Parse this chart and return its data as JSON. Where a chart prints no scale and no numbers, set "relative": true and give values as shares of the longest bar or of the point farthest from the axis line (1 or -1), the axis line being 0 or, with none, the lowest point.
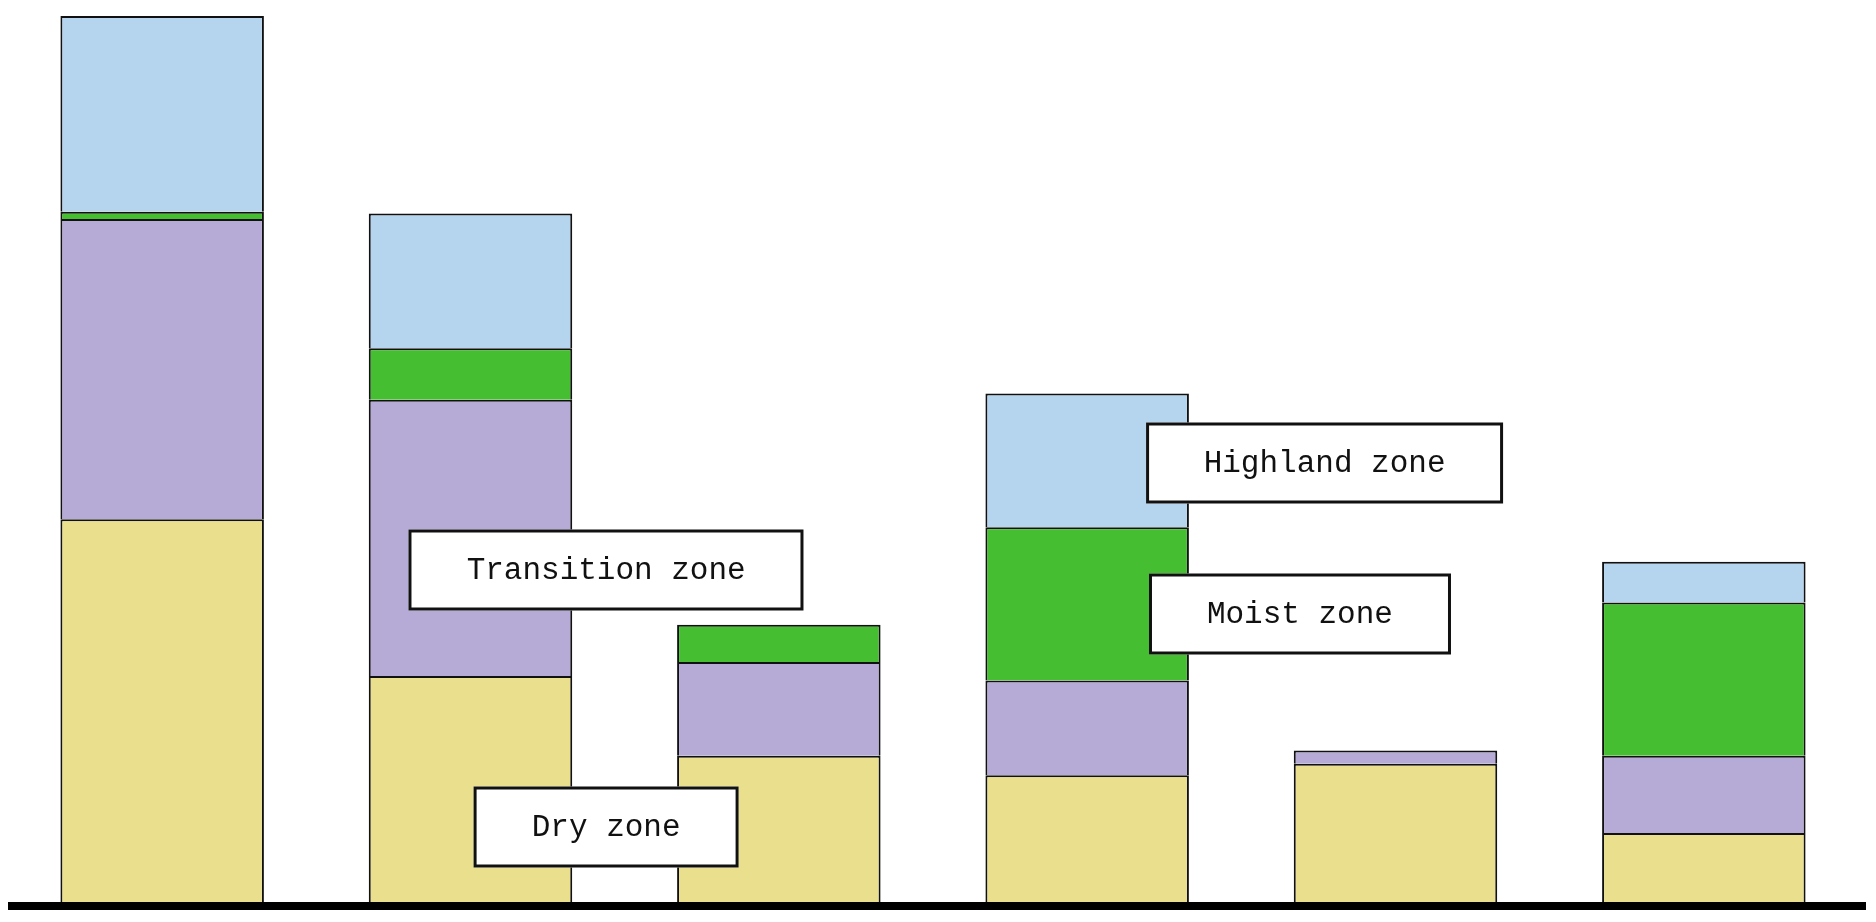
{
  "chart_data": {
    "type": "bar",
    "stacked": true,
    "relative": true,
    "categories": [
      null,
      null,
      null,
      null,
      null,
      null
    ],
    "legend": false,
    "series": [
      {
        "name": "Dry zone",
        "color": "#e9df8d",
        "values": [
          0.432,
          0.255,
          0.165,
          0.143,
          0.156,
          0.078
        ]
      },
      {
        "name": "Transition zone",
        "color": "#b6abd7",
        "values": [
          0.339,
          0.312,
          0.106,
          0.107,
          0.015,
          0.087
        ]
      },
      {
        "name": "Moist zone",
        "color": "#45bf31",
        "values": [
          0.008,
          0.058,
          0.042,
          0.173,
          0,
          0.173
        ]
      },
      {
        "name": "Highland zone",
        "color": "#b5d5ee",
        "values": [
          0.221,
          0.152,
          0,
          0.151,
          0,
          0.046
        ]
      }
    ]
  }
}
